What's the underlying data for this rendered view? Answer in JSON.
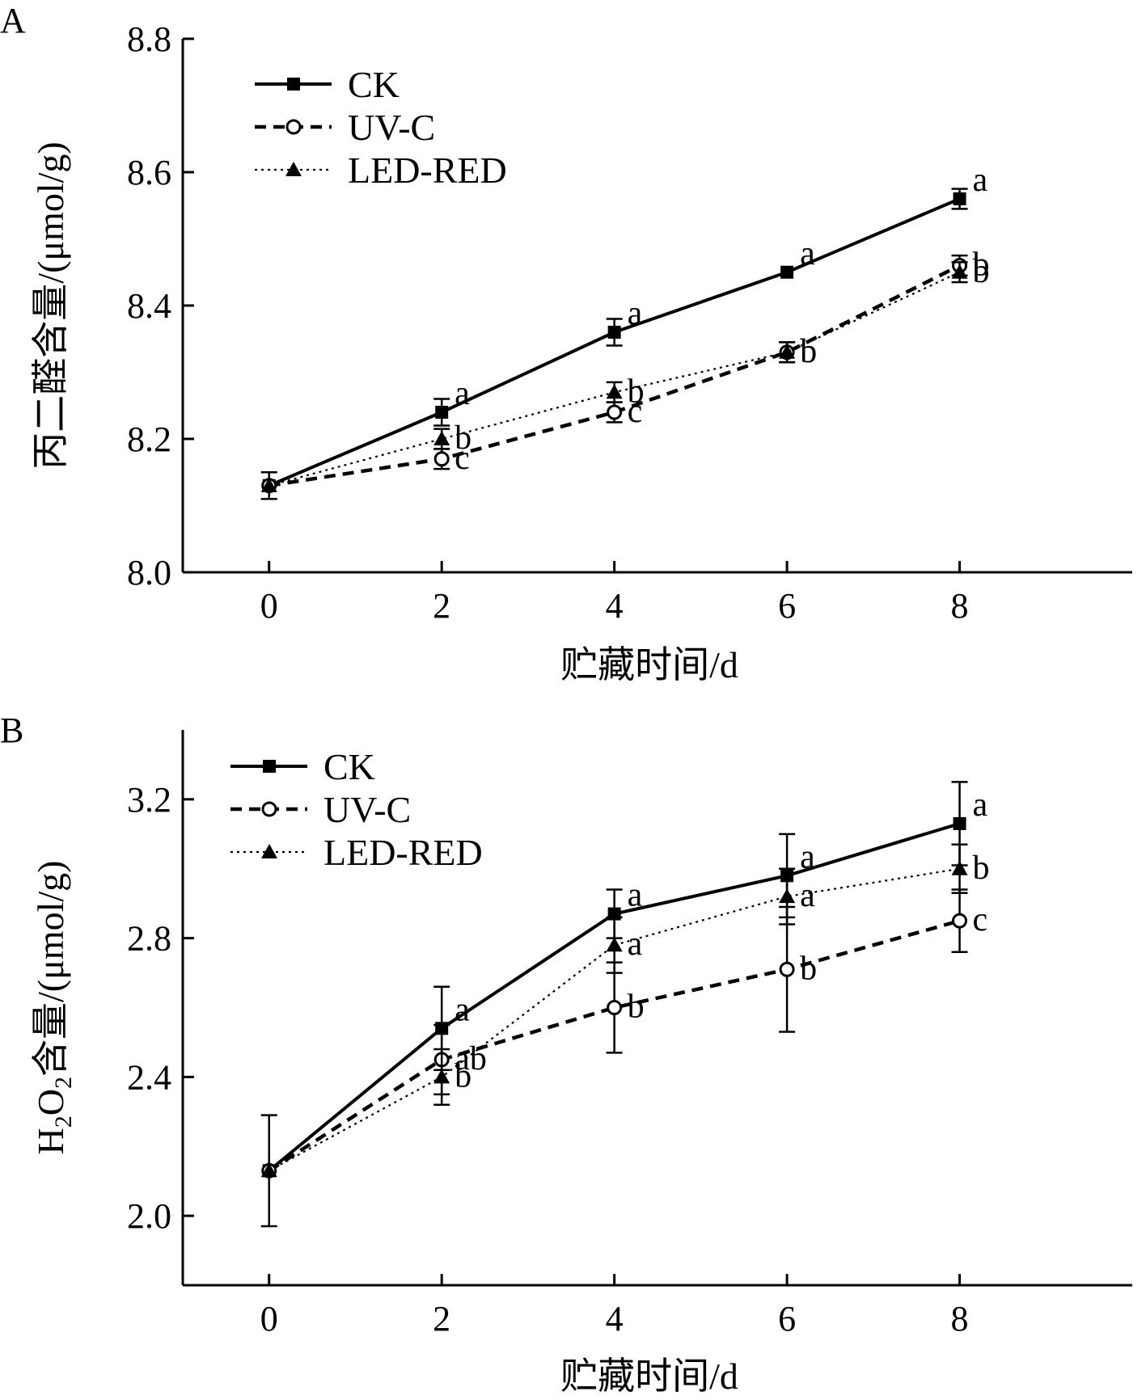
{
  "chart_data": [
    {
      "type": "line",
      "panel_label": "A",
      "xlabel": "贮藏时间/d",
      "ylabel": "丙二醛含量/(μmol/g)",
      "x": [
        0,
        2,
        4,
        6,
        8
      ],
      "xlim": [
        -1,
        10
      ],
      "ylim": [
        8.0,
        8.8
      ],
      "yticks": [
        8.0,
        8.2,
        8.4,
        8.6,
        8.8
      ],
      "ytick_labels": [
        "8.0",
        "8.2",
        "8.4",
        "8.6",
        "8.8"
      ],
      "xticks": [
        0,
        2,
        4,
        6,
        8
      ],
      "xtick_labels": [
        "0",
        "2",
        "4",
        "6",
        "8"
      ],
      "grid": false,
      "legend_position": "top-left",
      "series": [
        {
          "name": "CK",
          "style": "solid",
          "marker": "filled-square",
          "color": "#000000",
          "values": [
            8.13,
            8.24,
            8.36,
            8.45,
            8.56
          ],
          "errors": [
            0.02,
            0.02,
            0.02,
            0.0,
            0.015
          ],
          "sig": [
            "",
            "a",
            "a",
            "a",
            "a"
          ]
        },
        {
          "name": "UV-C",
          "style": "dashed",
          "marker": "open-circle",
          "color": "#000000",
          "values": [
            8.13,
            8.17,
            8.24,
            8.33,
            8.46
          ],
          "errors": [
            0.0,
            0.015,
            0.015,
            0.015,
            0.015
          ],
          "sig": [
            "",
            "c",
            "c",
            "b",
            "b"
          ]
        },
        {
          "name": "LED-RED",
          "style": "dotted",
          "marker": "filled-triangle",
          "color": "#000000",
          "values": [
            8.13,
            8.2,
            8.27,
            8.33,
            8.45
          ],
          "errors": [
            0.0,
            0.015,
            0.015,
            0.015,
            0.015
          ],
          "sig": [
            "",
            "b",
            "b",
            "b",
            "b"
          ]
        }
      ]
    },
    {
      "type": "line",
      "panel_label": "B",
      "xlabel": "贮藏时间/d",
      "ylabel_main": "H",
      "ylabel_sub1": "2",
      "ylabel_mid": "O",
      "ylabel_sub2": "2",
      "ylabel_rest": "含量/(μmol/g)",
      "x": [
        0,
        2,
        4,
        6,
        8
      ],
      "xlim": [
        -1,
        10
      ],
      "ylim": [
        1.8,
        3.4
      ],
      "yticks": [
        2.0,
        2.4,
        2.8,
        3.2
      ],
      "ytick_labels": [
        "2.0",
        "2.4",
        "2.8",
        "3.2"
      ],
      "xticks": [
        0,
        2,
        4,
        6,
        8
      ],
      "xtick_labels": [
        "0",
        "2",
        "4",
        "6",
        "8"
      ],
      "grid": false,
      "legend_position": "top-left",
      "series": [
        {
          "name": "CK",
          "style": "solid",
          "marker": "filled-square",
          "color": "#000000",
          "values": [
            2.13,
            2.54,
            2.87,
            2.98,
            3.13
          ],
          "errors": [
            0.16,
            0.12,
            0.07,
            0.12,
            0.12
          ],
          "sig": [
            "",
            "a",
            "a",
            "a",
            "a"
          ]
        },
        {
          "name": "UV-C",
          "style": "dashed",
          "marker": "open-circle",
          "color": "#000000",
          "values": [
            2.13,
            2.45,
            2.6,
            2.71,
            2.85
          ],
          "errors": [
            0.0,
            0.1,
            0.13,
            0.18,
            0.09
          ],
          "sig": [
            "",
            "ab",
            "b",
            "b",
            "c"
          ]
        },
        {
          "name": "LED-RED",
          "style": "dotted",
          "marker": "filled-triangle",
          "color": "#000000",
          "values": [
            2.13,
            2.4,
            2.78,
            2.92,
            3.0
          ],
          "errors": [
            0.0,
            0.08,
            0.08,
            0.08,
            0.07
          ],
          "sig": [
            "",
            "b",
            "a",
            "a",
            "b"
          ]
        }
      ]
    }
  ]
}
